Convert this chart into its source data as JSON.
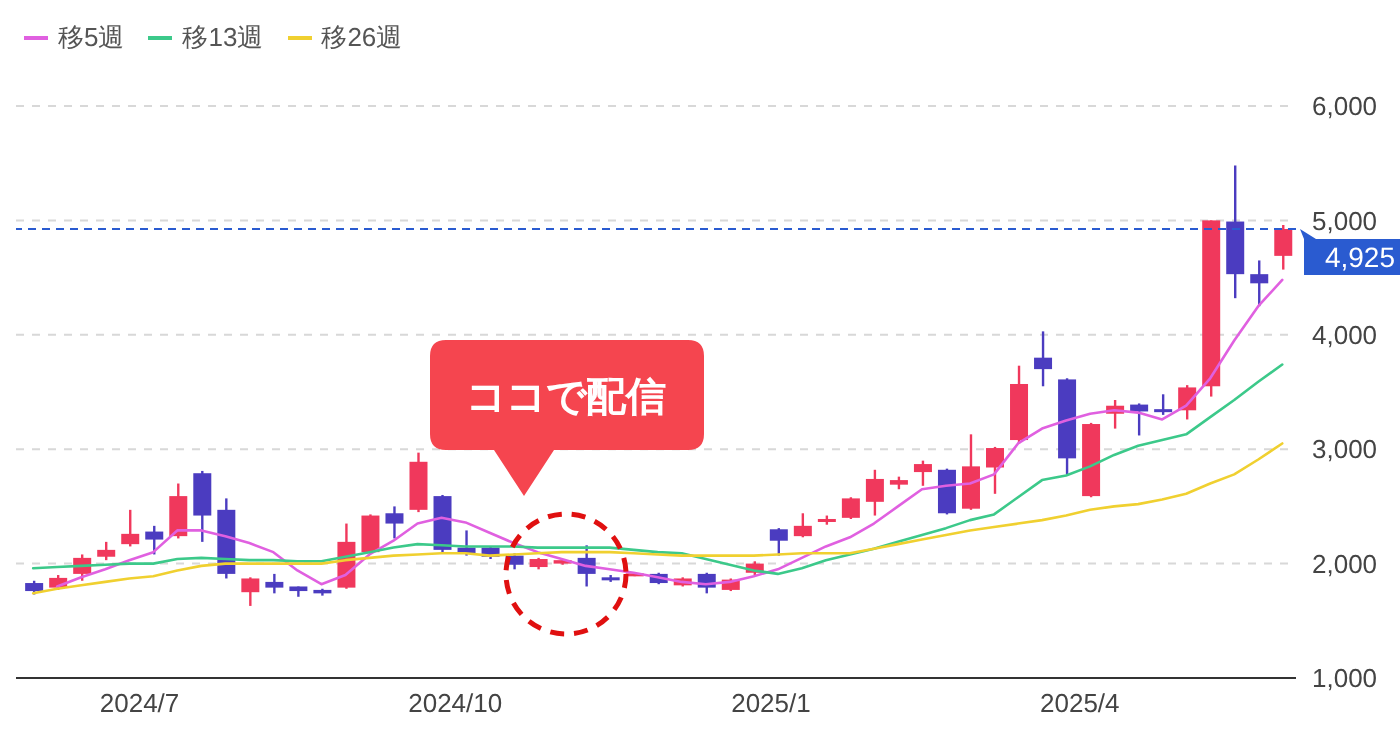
{
  "chart_data": {
    "type": "candlestick",
    "x": [
      "2024-05-31",
      "2024-06-07",
      "2024-06-14",
      "2024-06-21",
      "2024-06-28",
      "2024-07-05",
      "2024-07-12",
      "2024-07-19",
      "2024-07-26",
      "2024-08-02",
      "2024-08-09",
      "2024-08-16",
      "2024-08-23",
      "2024-08-30",
      "2024-09-06",
      "2024-09-13",
      "2024-09-20",
      "2024-09-27",
      "2024-10-04",
      "2024-10-11",
      "2024-10-18",
      "2024-10-25",
      "2024-11-01",
      "2024-11-08",
      "2024-11-15",
      "2024-11-22",
      "2024-11-29",
      "2024-12-06",
      "2024-12-13",
      "2024-12-20",
      "2024-12-27",
      "2025-01-03",
      "2025-01-10",
      "2025-01-17",
      "2025-01-24",
      "2025-01-31",
      "2025-02-07",
      "2025-02-14",
      "2025-02-21",
      "2025-02-28",
      "2025-03-07",
      "2025-03-14",
      "2025-03-21",
      "2025-03-28",
      "2025-04-04",
      "2025-04-11",
      "2025-04-18",
      "2025-04-25",
      "2025-05-02",
      "2025-05-09",
      "2025-05-16",
      "2025-05-23",
      "2025-05-30"
    ],
    "ohlc": [
      [
        1830,
        1850,
        1730,
        1760
      ],
      [
        1790,
        1900,
        1770,
        1875
      ],
      [
        1910,
        2080,
        1850,
        2050
      ],
      [
        2060,
        2190,
        2030,
        2120
      ],
      [
        2170,
        2470,
        2150,
        2260
      ],
      [
        2280,
        2330,
        2080,
        2210
      ],
      [
        2240,
        2700,
        2220,
        2590
      ],
      [
        2790,
        2810,
        2190,
        2420
      ],
      [
        2470,
        2570,
        1870,
        1910
      ],
      [
        1750,
        1880,
        1630,
        1870
      ],
      [
        1840,
        1910,
        1740,
        1790
      ],
      [
        1800,
        1800,
        1710,
        1760
      ],
      [
        1770,
        1780,
        1720,
        1740
      ],
      [
        1790,
        2350,
        1780,
        2190
      ],
      [
        2100,
        2430,
        2090,
        2420
      ],
      [
        2440,
        2500,
        2220,
        2350
      ],
      [
        2470,
        2970,
        2450,
        2890
      ],
      [
        2590,
        2600,
        2100,
        2120
      ],
      [
        2140,
        2290,
        2070,
        2090
      ],
      [
        2140,
        2150,
        2040,
        2060
      ],
      [
        2070,
        2090,
        1950,
        1990
      ],
      [
        1970,
        2050,
        1950,
        2040
      ],
      [
        2000,
        2040,
        1990,
        2030
      ],
      [
        2050,
        2160,
        1800,
        1910
      ],
      [
        1880,
        1900,
        1840,
        1870
      ],
      [
        1900,
        1920,
        1890,
        1915
      ],
      [
        1910,
        1920,
        1820,
        1830
      ],
      [
        1810,
        1880,
        1800,
        1870
      ],
      [
        1910,
        1920,
        1740,
        1790
      ],
      [
        1770,
        1870,
        1760,
        1860
      ],
      [
        1920,
        2020,
        1900,
        2000
      ],
      [
        2300,
        2310,
        2070,
        2200
      ],
      [
        2240,
        2440,
        2230,
        2330
      ],
      [
        2370,
        2420,
        2340,
        2390
      ],
      [
        2400,
        2580,
        2390,
        2570
      ],
      [
        2540,
        2820,
        2420,
        2740
      ],
      [
        2690,
        2760,
        2650,
        2730
      ],
      [
        2800,
        2900,
        2680,
        2870
      ],
      [
        2820,
        2830,
        2430,
        2440
      ],
      [
        2480,
        3130,
        2470,
        2850
      ],
      [
        2840,
        3020,
        2610,
        3010
      ],
      [
        3080,
        3730,
        3050,
        3570
      ],
      [
        3800,
        4030,
        3550,
        3700
      ],
      [
        3610,
        3620,
        2780,
        2920
      ],
      [
        2590,
        3230,
        2580,
        3220
      ],
      [
        3310,
        3430,
        3180,
        3380
      ],
      [
        3390,
        3400,
        3120,
        3330
      ],
      [
        3350,
        3480,
        3300,
        3340
      ],
      [
        3340,
        3560,
        3260,
        3540
      ],
      [
        3550,
        5000,
        3460,
        5000
      ],
      [
        4990,
        5480,
        4320,
        4530
      ],
      [
        4530,
        4650,
        4250,
        4450
      ],
      [
        4690,
        4960,
        4570,
        4925
      ]
    ],
    "colors": [
      "#4b3cc0",
      "#f0385c",
      "#f0385c",
      "#f0385c",
      "#f0385c",
      "#4b3cc0",
      "#f0385c",
      "#4b3cc0",
      "#4b3cc0",
      "#f0385c",
      "#4b3cc0",
      "#4b3cc0",
      "#4b3cc0",
      "#f0385c",
      "#f0385c",
      "#4b3cc0",
      "#f0385c",
      "#4b3cc0",
      "#4b3cc0",
      "#4b3cc0",
      "#4b3cc0",
      "#f0385c",
      "#f0385c",
      "#4b3cc0",
      "#4b3cc0",
      "#f0385c",
      "#4b3cc0",
      "#f0385c",
      "#4b3cc0",
      "#f0385c",
      "#f0385c",
      "#4b3cc0",
      "#f0385c",
      "#f0385c",
      "#f0385c",
      "#f0385c",
      "#f0385c",
      "#f0385c",
      "#4b3cc0",
      "#f0385c",
      "#f0385c",
      "#f0385c",
      "#4b3cc0",
      "#4b3cc0",
      "#f0385c",
      "#f0385c",
      "#4b3cc0",
      "#4b3cc0",
      "#f0385c",
      "#f0385c",
      "#4b3cc0",
      "#4b3cc0",
      "#f0385c"
    ],
    "series": [
      {
        "name": "移5週",
        "type": "line",
        "color": "#e060e0",
        "values": [
          null,
          1800,
          1880,
          1950,
          2030,
          2100,
          2290,
          2290,
          2240,
          2180,
          2100,
          1940,
          1820,
          1900,
          2080,
          2200,
          2350,
          2400,
          2360,
          2270,
          2180,
          2100,
          2040,
          1980,
          1950,
          1920,
          1880,
          1840,
          1820,
          1840,
          1890,
          1950,
          2050,
          2150,
          2230,
          2350,
          2500,
          2650,
          2680,
          2700,
          2780,
          3050,
          3180,
          3250,
          3310,
          3340,
          3320,
          3260,
          3380,
          3620,
          3950,
          4250,
          4480
        ]
      },
      {
        "name": "移13週",
        "type": "line",
        "color": "#3cc98a",
        "values": [
          1960,
          1970,
          1980,
          1990,
          2000,
          2000,
          2040,
          2050,
          2040,
          2030,
          2030,
          2020,
          2020,
          2060,
          2100,
          2140,
          2170,
          2160,
          2150,
          2150,
          2150,
          2140,
          2140,
          2140,
          2140,
          2120,
          2100,
          2090,
          2040,
          1990,
          1940,
          1910,
          1960,
          2030,
          2080,
          2130,
          2190,
          2250,
          2310,
          2380,
          2430,
          2580,
          2730,
          2770,
          2850,
          2950,
          3030,
          3080,
          3130,
          3280,
          3430,
          3590,
          3740
        ]
      },
      {
        "name": "移26週",
        "type": "line",
        "color": "#f0d030",
        "values": [
          1740,
          1780,
          1810,
          1840,
          1870,
          1890,
          1940,
          1980,
          2000,
          2000,
          2000,
          2000,
          2000,
          2030,
          2050,
          2070,
          2080,
          2090,
          2090,
          2070,
          2080,
          2090,
          2100,
          2100,
          2100,
          2090,
          2080,
          2070,
          2070,
          2070,
          2070,
          2080,
          2090,
          2090,
          2090,
          2130,
          2170,
          2210,
          2250,
          2290,
          2320,
          2350,
          2380,
          2420,
          2470,
          2500,
          2520,
          2560,
          2610,
          2700,
          2780,
          2910,
          3050
        ]
      }
    ],
    "xlim": [
      "2024-05-26",
      "2025-06-03"
    ],
    "xticks": [
      {
        "value": "2024-07-01",
        "label": "2024/7"
      },
      {
        "value": "2024-10-01",
        "label": "2024/10"
      },
      {
        "value": "2025-01-01",
        "label": "2025/1"
      },
      {
        "value": "2025-04-01",
        "label": "2025/4"
      }
    ],
    "ylim": [
      1000,
      6000
    ],
    "yticks": [
      {
        "value": 1000,
        "label": "1,000"
      },
      {
        "value": 2000,
        "label": "2,000"
      },
      {
        "value": 3000,
        "label": "3,000"
      },
      {
        "value": 4000,
        "label": "4,000"
      },
      {
        "value": 5000,
        "label": "5,000"
      },
      {
        "value": 6000,
        "label": "6,000"
      }
    ],
    "grid": "y",
    "legend": "top left",
    "marker": "none",
    "line_style": "solid",
    "ref_lines": [
      {
        "axis": "y",
        "value": 4925,
        "label": "4,925",
        "color": "#2a5bd0",
        "line_style": "dashed"
      }
    ],
    "annotations": [
      "ココで配信"
    ]
  }
}
